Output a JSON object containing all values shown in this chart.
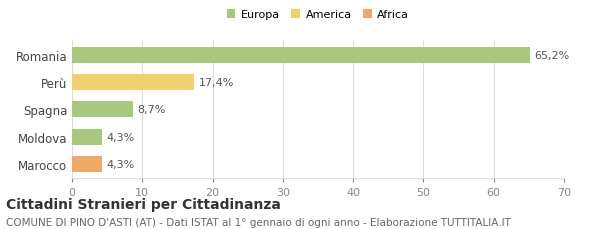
{
  "categories": [
    "Marocco",
    "Moldova",
    "Spagna",
    "Perù",
    "Romania"
  ],
  "values": [
    4.3,
    4.3,
    8.7,
    17.4,
    65.2
  ],
  "labels": [
    "4,3%",
    "4,3%",
    "8,7%",
    "17,4%",
    "65,2%"
  ],
  "colors": [
    "#f0a868",
    "#a8c880",
    "#a8c880",
    "#f0d070",
    "#a8c880"
  ],
  "legend": [
    {
      "label": "Europa",
      "color": "#a8c880"
    },
    {
      "label": "America",
      "color": "#f0d070"
    },
    {
      "label": "Africa",
      "color": "#f0a868"
    }
  ],
  "xlim": [
    0,
    70
  ],
  "xticks": [
    0,
    10,
    20,
    30,
    40,
    50,
    60,
    70
  ],
  "title": "Cittadini Stranieri per Cittadinanza",
  "subtitle": "COMUNE DI PINO D'ASTI (AT) - Dati ISTAT al 1° gennaio di ogni anno - Elaborazione TUTTITALIA.IT",
  "title_fontsize": 10,
  "subtitle_fontsize": 7.5,
  "background_color": "#ffffff",
  "grid_color": "#dddddd",
  "label_fontsize": 8,
  "tick_fontsize": 8,
  "ytick_fontsize": 8.5
}
